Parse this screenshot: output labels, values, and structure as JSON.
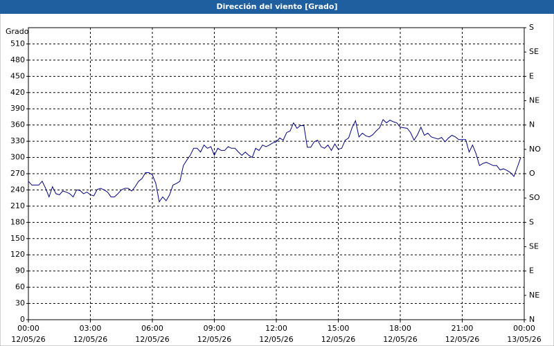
{
  "chart_data": {
    "type": "line",
    "title": "Dirección del viento [Grado]",
    "ylabel": "Grado",
    "color": "#000080",
    "grid": true,
    "x": [
      0,
      10,
      20,
      30,
      40,
      50,
      60,
      70,
      80,
      90,
      100,
      110,
      120,
      130,
      140,
      150,
      160,
      170,
      180,
      190,
      200,
      210,
      220,
      230,
      240,
      250,
      260,
      270,
      280,
      290,
      300,
      310,
      320,
      330,
      340,
      350,
      360,
      370,
      380,
      390,
      400,
      410,
      420,
      430,
      440,
      450,
      460,
      470,
      480,
      490,
      500,
      510,
      520,
      530,
      540,
      550,
      560,
      570,
      580,
      590,
      600,
      610,
      620,
      630,
      640,
      650,
      660,
      670,
      680,
      690,
      700,
      710,
      720,
      730,
      740,
      750,
      760,
      770,
      780,
      790,
      800,
      810,
      820,
      830,
      840,
      850,
      860,
      870,
      880,
      890,
      900,
      910,
      920,
      930,
      940,
      950,
      960,
      970,
      980,
      990,
      1000,
      1010,
      1020,
      1030,
      1040,
      1050,
      1060,
      1070,
      1080,
      1090,
      1100,
      1110,
      1120,
      1130,
      1140,
      1150,
      1160,
      1170,
      1180,
      1190,
      1200,
      1210,
      1220,
      1230,
      1240,
      1250,
      1260,
      1270,
      1280,
      1290,
      1300,
      1310,
      1320,
      1330,
      1340,
      1350,
      1360,
      1370,
      1380,
      1390,
      1400,
      1410,
      1420,
      1430
    ],
    "values": [
      256,
      249,
      249,
      249,
      256,
      243,
      227,
      246,
      233,
      231,
      238,
      236,
      233,
      227,
      240,
      239,
      233,
      236,
      231,
      229,
      241,
      243,
      240,
      236,
      227,
      227,
      233,
      240,
      243,
      243,
      238,
      246,
      256,
      261,
      272,
      272,
      268,
      252,
      218,
      227,
      220,
      231,
      249,
      252,
      256,
      285,
      295,
      304,
      317,
      317,
      310,
      323,
      317,
      320,
      304,
      317,
      313,
      313,
      320,
      317,
      317,
      310,
      304,
      310,
      304,
      300,
      317,
      313,
      323,
      320,
      323,
      327,
      329,
      336,
      332,
      346,
      349,
      364,
      354,
      359,
      359,
      319,
      319,
      329,
      332,
      320,
      317,
      323,
      313,
      325,
      315,
      317,
      332,
      336,
      355,
      368,
      338,
      345,
      340,
      338,
      342,
      349,
      355,
      370,
      364,
      369,
      366,
      364,
      356,
      355,
      354,
      346,
      332,
      342,
      356,
      341,
      345,
      338,
      336,
      334,
      337,
      329,
      336,
      341,
      338,
      333,
      333,
      333,
      310,
      323,
      307,
      285,
      289,
      291,
      288,
      285,
      285,
      277,
      279,
      276,
      272,
      265,
      282,
      300
    ],
    "xlim": [
      0,
      1440
    ],
    "xticks": [
      {
        "value": 0,
        "label": "00:00",
        "date": "12/05/26"
      },
      {
        "value": 180,
        "label": "03:00",
        "date": "12/05/26"
      },
      {
        "value": 360,
        "label": "06:00",
        "date": "12/05/26"
      },
      {
        "value": 540,
        "label": "09:00",
        "date": "12/05/26"
      },
      {
        "value": 720,
        "label": "12:00",
        "date": "12/05/26"
      },
      {
        "value": 900,
        "label": "15:00",
        "date": "12/05/26"
      },
      {
        "value": 1080,
        "label": "18:00",
        "date": "12/05/26"
      },
      {
        "value": 1260,
        "label": "21:00",
        "date": "12/05/26"
      },
      {
        "value": 1440,
        "label": "00:00",
        "date": "13/05/26"
      }
    ],
    "ylim": [
      0,
      540
    ],
    "yticks": [
      0,
      30,
      60,
      90,
      120,
      150,
      180,
      210,
      240,
      270,
      300,
      330,
      360,
      390,
      420,
      450,
      480,
      510
    ],
    "y2lim": [
      0,
      540
    ],
    "y2ticks": [
      {
        "value": 0,
        "label": "N"
      },
      {
        "value": 45,
        "label": "NE"
      },
      {
        "value": 90,
        "label": "E"
      },
      {
        "value": 135,
        "label": "SE"
      },
      {
        "value": 180,
        "label": "S"
      },
      {
        "value": 225,
        "label": "SO"
      },
      {
        "value": 270,
        "label": "O"
      },
      {
        "value": 315,
        "label": "NO"
      },
      {
        "value": 360,
        "label": "N"
      },
      {
        "value": 405,
        "label": "NE"
      },
      {
        "value": 450,
        "label": "E"
      },
      {
        "value": 495,
        "label": "SE"
      },
      {
        "value": 540,
        "label": "S"
      }
    ]
  }
}
